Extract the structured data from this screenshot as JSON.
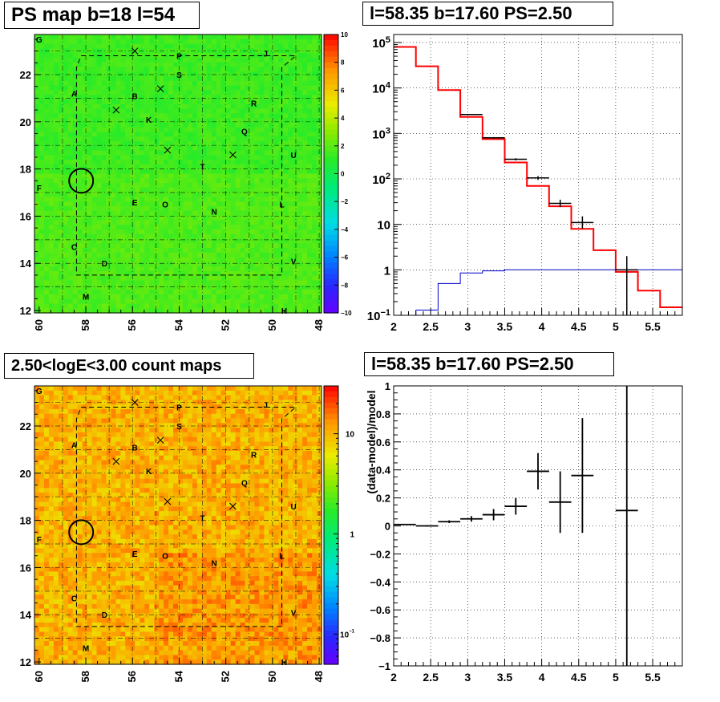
{
  "chart_data": [
    {
      "type": "heatmap",
      "title": "PS map b=18 l=54",
      "x_ticks": [
        "60",
        "58",
        "56",
        "54",
        "52",
        "50",
        "48"
      ],
      "y_ticks": [
        "12",
        "14",
        "16",
        "18",
        "20",
        "22"
      ],
      "xlim": [
        60.2,
        47.9
      ],
      "ylim": [
        11.9,
        23.7
      ],
      "colorbar": {
        "scale": "linear",
        "range": [
          -10,
          10
        ],
        "ticks": [
          "10",
          "8",
          "6",
          "4",
          "2",
          "0",
          "−2",
          "−4",
          "−6",
          "−8",
          "−10"
        ]
      },
      "source_labels": [
        {
          "text": "G",
          "l": 60.0,
          "b": 23.5
        },
        {
          "text": "P",
          "l": 54.0,
          "b": 22.8
        },
        {
          "text": "J",
          "l": 50.3,
          "b": 22.9
        },
        {
          "text": "S",
          "l": 54.0,
          "b": 22.0
        },
        {
          "text": "A",
          "l": 58.5,
          "b": 21.2
        },
        {
          "text": "B",
          "l": 55.9,
          "b": 21.1
        },
        {
          "text": "R",
          "l": 50.8,
          "b": 20.8
        },
        {
          "text": "K",
          "l": 55.3,
          "b": 20.1
        },
        {
          "text": "Q",
          "l": 51.2,
          "b": 19.6
        },
        {
          "text": "U",
          "l": 49.1,
          "b": 18.6
        },
        {
          "text": "T",
          "l": 53.0,
          "b": 18.1
        },
        {
          "text": "F",
          "l": 60.0,
          "b": 17.2
        },
        {
          "text": "E",
          "l": 55.9,
          "b": 16.6
        },
        {
          "text": "O",
          "l": 54.6,
          "b": 16.5
        },
        {
          "text": "L",
          "l": 49.6,
          "b": 16.5
        },
        {
          "text": "N",
          "l": 52.5,
          "b": 16.2
        },
        {
          "text": "C",
          "l": 58.5,
          "b": 14.7
        },
        {
          "text": "D",
          "l": 57.2,
          "b": 14.0
        },
        {
          "text": "V",
          "l": 49.1,
          "b": 14.1
        },
        {
          "text": "M",
          "l": 58.0,
          "b": 12.6
        },
        {
          "text": "H",
          "l": 49.5,
          "b": 12.0
        }
      ],
      "crosses": [
        [
          55.9,
          23.0
        ],
        [
          54.8,
          21.4
        ],
        [
          56.7,
          20.5
        ],
        [
          54.5,
          18.8
        ],
        [
          51.7,
          18.6
        ]
      ],
      "circle": {
        "l": 58.2,
        "b": 17.5
      }
    },
    {
      "type": "line",
      "title": "l=58.35 b=17.60 PS=2.50",
      "y_scale": "log",
      "xlim": [
        2.0,
        5.9
      ],
      "ylim": [
        0.1,
        150000
      ],
      "x_ticks": [
        "2",
        "2.5",
        "3",
        "3.5",
        "4",
        "4.5",
        "5",
        "5.5"
      ],
      "y_ticks": [
        {
          "v": 100000,
          "m": "10",
          "e": "5"
        },
        {
          "v": 10000,
          "m": "10",
          "e": "4"
        },
        {
          "v": 1000,
          "m": "10",
          "e": "3"
        },
        {
          "v": 100,
          "m": "10",
          "e": "2"
        },
        {
          "v": 10,
          "m": "10",
          "e": ""
        },
        {
          "v": 1,
          "m": "1",
          "e": ""
        },
        {
          "v": 0.1,
          "m": "10",
          "e": "−1"
        }
      ],
      "bin_edges": [
        2.0,
        2.3,
        2.6,
        2.9,
        3.2,
        3.5,
        3.8,
        4.1,
        4.4,
        4.7,
        5.0,
        5.3,
        5.6,
        5.9
      ],
      "series": [
        {
          "color": "#ff0000",
          "values": [
            80000,
            30000,
            9000,
            2300,
            750,
            230,
            70,
            25,
            8,
            2.7,
            0.9,
            0.35,
            0.15
          ]
        },
        {
          "color": "#0000cc",
          "values": [
            0.1,
            0.13,
            0.5,
            0.85,
            0.95,
            1.0,
            1.0,
            1.0,
            1.0,
            1.0,
            1.0,
            1.0,
            1.0
          ]
        }
      ],
      "data_points": [
        {
          "x": 3.05,
          "y": 2600,
          "xerr": 0.15,
          "yerr": [
            2550,
            2650
          ]
        },
        {
          "x": 3.35,
          "y": 800,
          "xerr": 0.15,
          "yerr": [
            770,
            830
          ]
        },
        {
          "x": 3.65,
          "y": 270,
          "xerr": 0.15,
          "yerr": [
            255,
            285
          ]
        },
        {
          "x": 3.95,
          "y": 105,
          "xerr": 0.15,
          "yerr": [
            95,
            115
          ]
        },
        {
          "x": 4.25,
          "y": 29,
          "xerr": 0.15,
          "yerr": [
            24,
            35
          ]
        },
        {
          "x": 4.55,
          "y": 11,
          "xerr": 0.15,
          "yerr": [
            8,
            15
          ]
        },
        {
          "x": 5.15,
          "y": 1,
          "xerr": 0.15,
          "yerr": [
            0.1,
            2
          ]
        }
      ]
    },
    {
      "type": "heatmap",
      "title": "2.50<logE<3.00 count maps",
      "x_ticks": [
        "60",
        "58",
        "56",
        "54",
        "52",
        "50",
        "48"
      ],
      "y_ticks": [
        "12",
        "14",
        "16",
        "18",
        "20",
        "22"
      ],
      "xlim": [
        60.2,
        47.9
      ],
      "ylim": [
        11.9,
        23.7
      ],
      "colorbar": {
        "scale": "log",
        "range": [
          0.05,
          30
        ],
        "ticks": [
          {
            "v": 10,
            "m": "10",
            "e": ""
          },
          {
            "v": 1,
            "m": "1",
            "e": ""
          },
          {
            "v": 0.1,
            "m": "10",
            "e": "−1"
          }
        ]
      },
      "source_labels": [
        {
          "text": "G",
          "l": 60.0,
          "b": 23.5
        },
        {
          "text": "P",
          "l": 54.0,
          "b": 22.8
        },
        {
          "text": "J",
          "l": 50.3,
          "b": 22.9
        },
        {
          "text": "S",
          "l": 54.0,
          "b": 22.0
        },
        {
          "text": "A",
          "l": 58.5,
          "b": 21.2
        },
        {
          "text": "B",
          "l": 55.9,
          "b": 21.1
        },
        {
          "text": "R",
          "l": 50.8,
          "b": 20.8
        },
        {
          "text": "K",
          "l": 55.3,
          "b": 20.1
        },
        {
          "text": "Q",
          "l": 51.2,
          "b": 19.6
        },
        {
          "text": "U",
          "l": 49.1,
          "b": 18.6
        },
        {
          "text": "T",
          "l": 53.0,
          "b": 18.1
        },
        {
          "text": "F",
          "l": 60.0,
          "b": 17.2
        },
        {
          "text": "E",
          "l": 55.9,
          "b": 16.6
        },
        {
          "text": "O",
          "l": 54.6,
          "b": 16.5
        },
        {
          "text": "L",
          "l": 49.6,
          "b": 16.5
        },
        {
          "text": "N",
          "l": 52.5,
          "b": 16.2
        },
        {
          "text": "C",
          "l": 58.5,
          "b": 14.7
        },
        {
          "text": "D",
          "l": 57.2,
          "b": 14.0
        },
        {
          "text": "V",
          "l": 49.1,
          "b": 14.1
        },
        {
          "text": "M",
          "l": 58.0,
          "b": 12.6
        },
        {
          "text": "H",
          "l": 49.5,
          "b": 12.0
        }
      ],
      "crosses": [
        [
          55.9,
          23.0
        ],
        [
          54.8,
          21.4
        ],
        [
          56.7,
          20.5
        ],
        [
          54.5,
          18.8
        ],
        [
          51.7,
          18.6
        ]
      ],
      "circle": {
        "l": 58.2,
        "b": 17.5
      }
    },
    {
      "type": "scatter",
      "title": "l=58.35 b=17.60 PS=2.50",
      "ylabel": "(data-model)/model",
      "xlim": [
        2.0,
        5.9
      ],
      "ylim": [
        -1,
        1
      ],
      "x_ticks": [
        "2",
        "2.5",
        "3",
        "3.5",
        "4",
        "4.5",
        "5",
        "5.5"
      ],
      "y_ticks": [
        "1",
        "0.8",
        "0.6",
        "0.4",
        "0.2",
        "0",
        "−0.2",
        "−0.4",
        "−0.6",
        "−0.8",
        "−1"
      ],
      "points": [
        {
          "x": 2.15,
          "y": 0.01,
          "xerr": 0.15,
          "yerr": 0.005
        },
        {
          "x": 2.45,
          "y": 0.0,
          "xerr": 0.15,
          "yerr": 0.006
        },
        {
          "x": 2.75,
          "y": 0.03,
          "xerr": 0.15,
          "yerr": 0.01
        },
        {
          "x": 3.05,
          "y": 0.05,
          "xerr": 0.15,
          "yerr": 0.02
        },
        {
          "x": 3.35,
          "y": 0.08,
          "xerr": 0.15,
          "yerr": 0.04
        },
        {
          "x": 3.65,
          "y": 0.14,
          "xerr": 0.15,
          "yerr": 0.06
        },
        {
          "x": 3.95,
          "y": 0.39,
          "xerr": 0.15,
          "yerr": 0.13
        },
        {
          "x": 4.25,
          "y": 0.17,
          "xerr": 0.15,
          "yerr": 0.22
        },
        {
          "x": 4.55,
          "y": 0.36,
          "xerr": 0.15,
          "yerr": 0.41
        },
        {
          "x": 5.15,
          "y": 0.11,
          "xerr": 0.15,
          "yerr": 1.2
        }
      ]
    }
  ]
}
